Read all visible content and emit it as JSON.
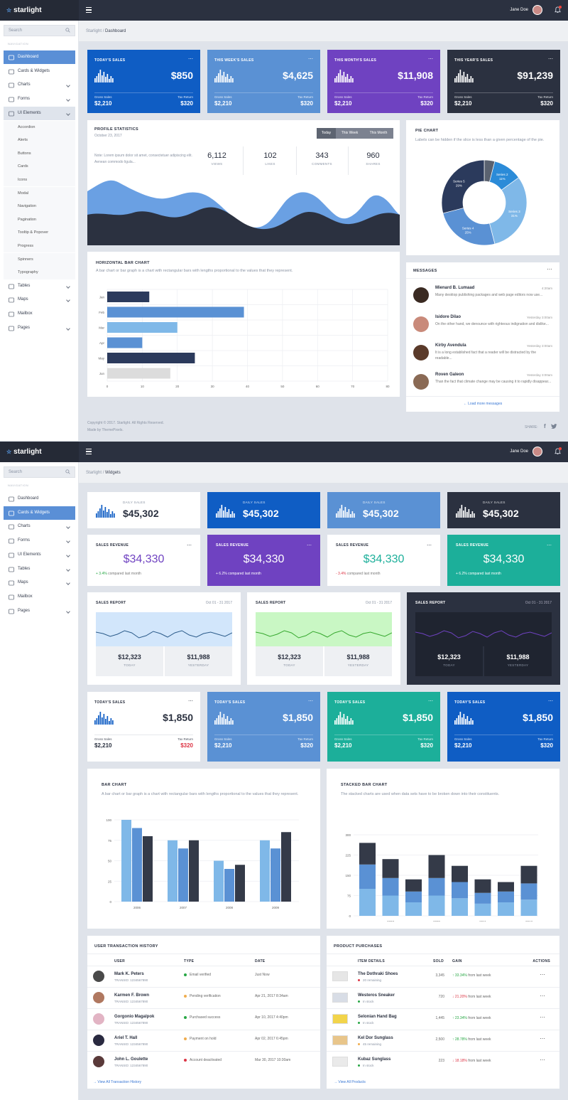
{
  "app": {
    "logo": "starlight",
    "user_name": "Jane Doe"
  },
  "sidebar": {
    "search_placeholder": "Search",
    "nav_label": "NAVIGATION",
    "items": [
      "Dashboard",
      "Cards & Widgets",
      "Charts",
      "Forms",
      "UI Elements",
      "Tables",
      "Maps",
      "Mailbox",
      "Pages"
    ],
    "ui_sub": [
      "Accordion",
      "Alerts",
      "Buttons",
      "Cards",
      "Icons",
      "Modal",
      "Navigation",
      "Pagination",
      "Tooltip & Popover",
      "Progress",
      "Spinners",
      "Typography"
    ]
  },
  "dashboard": {
    "breadcrumb": {
      "root": "Starlight",
      "sep": "/",
      "current": "Dashboard"
    },
    "stats": [
      {
        "title": "TODAY'S SALES",
        "value": "$850",
        "gross_label": "Gross Sales",
        "gross": "$2,210",
        "tax_label": "Tax Return",
        "tax": "$320",
        "color": "#0f5dc4"
      },
      {
        "title": "THIS WEEK'S SALES",
        "value": "$4,625",
        "gross_label": "Gross Sales",
        "gross": "$2,210",
        "tax_label": "Tax Return",
        "tax": "$320",
        "color": "#5a91d4"
      },
      {
        "title": "THIS MONTH'S SALES",
        "value": "$11,908",
        "gross_label": "Gross Sales",
        "gross": "$2,210",
        "tax_label": "Tax Return",
        "tax": "$320",
        "color": "#6f42c1"
      },
      {
        "title": "THIS YEAR'S SALES",
        "value": "$91,239",
        "gross_label": "Gross Sales",
        "gross": "$2,210",
        "tax_label": "Tax Return",
        "tax": "$320",
        "color": "#2b3140"
      }
    ],
    "profile": {
      "title": "PROFILE STATISTICS",
      "date": "October 23, 2017",
      "tabs": [
        "Today",
        "This Week",
        "This Month"
      ],
      "note": "Note: Lorem ipsum dolor sit amet, consectetuer adipiscing elit. Aenean commodo ligula...",
      "metrics": [
        {
          "v": "6,112",
          "l": "VIEWS"
        },
        {
          "v": "102",
          "l": "LIKES"
        },
        {
          "v": "343",
          "l": "COMMENTS"
        },
        {
          "v": "960",
          "l": "SHARES"
        }
      ]
    },
    "pie": {
      "title": "PIE CHART",
      "desc": "Labels can be hidden if the slice is less than a given percentage of the pie."
    },
    "hbar": {
      "title": "HORIZONTAL BAR CHART",
      "desc": "A bar chart or bar graph is a chart with rectangular bars with lengths proportional to the values that they represent."
    },
    "messages": {
      "title": "MESSAGES",
      "load_more": "Load more messages",
      "items": [
        {
          "name": "Mienard B. Lumaad",
          "time": "4:20am",
          "text": "Many desktop publishing packages and web page editors now use..."
        },
        {
          "name": "Isidore Dilao",
          "time": "Yesterday 3:00am",
          "text": "On the other hand, we denounce with righteous indignation and dislike..."
        },
        {
          "name": "Kirby Avendula",
          "time": "Yesterday 3:00am",
          "text": "It is a long established fact that a reader will be distracted by the readable..."
        },
        {
          "name": "Roven Galeon",
          "time": "Yesterday 3:00am",
          "text": "Than the fact that climate change may be causing it to rapidly disappear..."
        }
      ]
    },
    "footer": {
      "copyright": "Copyright © 2017. Starlight. All Rights Reserved.",
      "made_by": "Made by ThemePixels.",
      "share": "SHARE:"
    }
  },
  "widgets": {
    "breadcrumb": {
      "root": "Starlight",
      "sep": "/",
      "current": "Widgets"
    },
    "daily": [
      {
        "label": "DAILY SALES",
        "value": "$45,302",
        "color": "#ffffff"
      },
      {
        "label": "DAILY SALES",
        "value": "$45,302",
        "color": "#0f5dc4"
      },
      {
        "label": "DAILY SALES",
        "value": "$45,302",
        "color": "#5a91d4"
      },
      {
        "label": "DAILY SALES",
        "value": "$45,302",
        "color": "#2b3140"
      }
    ],
    "revenue": [
      {
        "title": "SALES REVENUE",
        "value": "$34,330",
        "change": "+ 3.4%",
        "rest": "compared last month",
        "bg": "#ffffff",
        "vcolor": "#6f42c1",
        "ccolor": "#28a745"
      },
      {
        "title": "SALES REVENUE",
        "value": "$34,330",
        "change": "+ 6.2%",
        "rest": "compared last month",
        "bg": "#6f42c1",
        "vcolor": "#ffffff",
        "ccolor": "#ffffff"
      },
      {
        "title": "SALES REVENUE",
        "value": "$34,330",
        "change": "- 3.4%",
        "rest": "compared last month",
        "bg": "#ffffff",
        "vcolor": "#1caf9a",
        "ccolor": "#dc3545"
      },
      {
        "title": "SALES REVENUE",
        "value": "$34,330",
        "change": "+ 6.2%",
        "rest": "compared last month",
        "bg": "#1caf9a",
        "vcolor": "#ffffff",
        "ccolor": "#ffffff"
      }
    ],
    "reports": [
      {
        "title": "SALES REPORT",
        "date": "Oct 01 - 31 2017",
        "today": "$12,323",
        "today_l": "TODAY",
        "yest": "$11,988",
        "yest_l": "YESTERDAY"
      },
      {
        "title": "SALES REPORT",
        "date": "Oct 01 - 31 2017",
        "today": "$12,323",
        "today_l": "TODAY",
        "yest": "$11,988",
        "yest_l": "YESTERDAY"
      },
      {
        "title": "SALES REPORT",
        "date": "Oct 01 - 31 2017",
        "today": "$12,323",
        "today_l": "TODAY",
        "yest": "$11,988",
        "yest_l": "YESTERDAY"
      }
    ],
    "today_sales": [
      {
        "title": "TODAY'S SALES",
        "value": "$1,850",
        "gross_label": "Gross Sales",
        "gross": "$2,210",
        "tax_label": "Tax Return",
        "tax": "$320",
        "color": "#ffffff"
      },
      {
        "title": "TODAY'S SALES",
        "value": "$1,850",
        "gross_label": "Gross Sales",
        "gross": "$2,210",
        "tax_label": "Tax Return",
        "tax": "$320",
        "color": "#5a91d4"
      },
      {
        "title": "TODAY'S SALES",
        "value": "$1,850",
        "gross_label": "Gross Sales",
        "gross": "$2,210",
        "tax_label": "Tax Return",
        "tax": "$320",
        "color": "#1caf9a"
      },
      {
        "title": "TODAY'S SALES",
        "value": "$1,850",
        "gross_label": "Gross Sales",
        "gross": "$2,210",
        "tax_label": "Tax Return",
        "tax": "$320",
        "color": "#0f5dc4"
      }
    ],
    "bar": {
      "title": "BAR CHART",
      "desc": "A bar chart or bar graph is a chart with rectangular bars with lengths proportional to the values that they represent."
    },
    "stacked": {
      "title": "STACKED BAR CHART",
      "desc": "The stacked charts are used when data sets have to be broken down into their constituents."
    },
    "transactions": {
      "title": "USER TRANSACTION HISTORY",
      "cols": [
        "USER",
        "TYPE",
        "DATE"
      ],
      "link": "View All Transaction History",
      "rows": [
        {
          "name": "Mark K. Peters",
          "id": "TRANSID: 1234567890",
          "type": "Email verified",
          "status": "#28a745",
          "date": "Just Now"
        },
        {
          "name": "Karmen F. Brown",
          "id": "TRANSID: 1234567890",
          "type": "Pending verification",
          "status": "#f0ad4e",
          "date": "Apr 21, 2017 8:34am"
        },
        {
          "name": "Gorgonio Magalpok",
          "id": "TRANSID: 1234567890",
          "type": "Purchased success",
          "status": "#28a745",
          "date": "Apr 10, 2017 4:40pm"
        },
        {
          "name": "Ariel T. Hall",
          "id": "TRANSID: 1234567890",
          "type": "Payment on hold",
          "status": "#f0ad4e",
          "date": "Apr 02, 2017 6:45pm"
        },
        {
          "name": "John L. Goulette",
          "id": "TRANSID: 1234567890",
          "type": "Account deactivated",
          "status": "#dc3545",
          "date": "Mar 30, 2017 10:30am"
        }
      ]
    },
    "products": {
      "title": "PRODUCT PURCHASES",
      "cols": [
        "ITEM DETAILS",
        "SOLD",
        "GAIN",
        "ACTIONS"
      ],
      "link": "View All Products",
      "rows": [
        {
          "name": "The Dothraki Shoes",
          "stock": "20 remaining",
          "sc": "#dc3545",
          "sold": "3,345",
          "gain": "33.34%",
          "dir": "↑",
          "gc": "#28a745",
          "rest": "from last week"
        },
        {
          "name": "Westeros Sneaker",
          "stock": "In stock",
          "sc": "#28a745",
          "sold": "720",
          "gain": "21.20%",
          "dir": "↓",
          "gc": "#dc3545",
          "rest": "from last week"
        },
        {
          "name": "Selonian Hand Bag",
          "stock": "In stock",
          "sc": "#28a745",
          "sold": "1,445",
          "gain": "23.34%",
          "dir": "↑",
          "gc": "#28a745",
          "rest": "from last week"
        },
        {
          "name": "Kel Dor Sunglass",
          "stock": "45 remaining",
          "sc": "#f0ad4e",
          "sold": "2,500",
          "gain": "28.78%",
          "dir": "↑",
          "gc": "#28a745",
          "rest": "from last week"
        },
        {
          "name": "Kubaz Sunglass",
          "stock": "In stock",
          "sc": "#28a745",
          "sold": "223",
          "gain": "18.18%",
          "dir": "↓",
          "gc": "#dc3545",
          "rest": "from last week"
        }
      ]
    }
  },
  "chart_data": [
    {
      "type": "pie",
      "categories": [
        "Series 1",
        "Series 2",
        "Series 3",
        "Series 4",
        "Series 5"
      ],
      "values": [
        4,
        11,
        31,
        25,
        29
      ],
      "labels": [
        "",
        "Series 2\n11%",
        "Series 3\n31%",
        "Series 4\n25%",
        "Series 5\n29%"
      ],
      "colors": [
        "#5a6270",
        "#2b8bd8",
        "#7fb8e8",
        "#5a91d4",
        "#2b3a5c"
      ]
    },
    {
      "type": "bar",
      "orientation": "horizontal",
      "categories": [
        "Jan",
        "Feb",
        "Mar",
        "Apr",
        "May",
        "Jun"
      ],
      "values": [
        12,
        39,
        20,
        10,
        25,
        18
      ],
      "colors": [
        "#2b3a5c",
        "#5a91d4",
        "#7fb8e8",
        "#5a91d4",
        "#2b3a5c",
        "#dcdcdc"
      ],
      "xlim": [
        0,
        80
      ],
      "xticks": [
        0,
        10,
        20,
        30,
        40,
        50,
        60,
        70,
        80
      ]
    },
    {
      "type": "bar",
      "categories": [
        "2006",
        "2007",
        "2008",
        "2009"
      ],
      "series": [
        {
          "values": [
            100,
            75,
            50,
            75
          ],
          "color": "#7fb8e8"
        },
        {
          "values": [
            90,
            65,
            40,
            65
          ],
          "color": "#5a91d4"
        },
        {
          "values": [
            80,
            75,
            45,
            85
          ],
          "color": "#343a48"
        }
      ],
      "ylim": [
        0,
        100
      ],
      "yticks": [
        0,
        25,
        50,
        75,
        100
      ]
    },
    {
      "type": "bar",
      "stacked": true,
      "categories": [
        "",
        "2007",
        "",
        "2009",
        "",
        "2011",
        "",
        "2013"
      ],
      "series": [
        {
          "values": [
            100,
            75,
            50,
            75,
            65,
            45,
            50,
            60
          ],
          "color": "#7fb8e8"
        },
        {
          "values": [
            90,
            65,
            40,
            65,
            60,
            40,
            40,
            60
          ],
          "color": "#5a91d4"
        },
        {
          "values": [
            80,
            70,
            45,
            85,
            60,
            50,
            35,
            65
          ],
          "color": "#343a48"
        }
      ],
      "ylim": [
        0,
        300
      ],
      "yticks": [
        0,
        75,
        150,
        225,
        300
      ]
    }
  ]
}
